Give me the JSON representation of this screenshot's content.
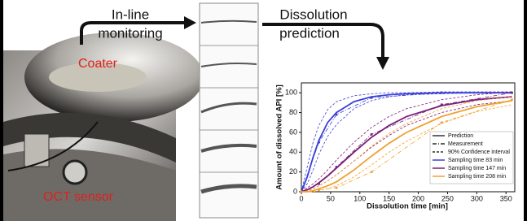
{
  "header": {
    "step1": [
      "In-line",
      "monitoring"
    ],
    "step2": [
      "Dissolution",
      "prediction"
    ]
  },
  "photo": {
    "label_top": "Coater",
    "label_bottom": "OCT sensor"
  },
  "chart_data": {
    "type": "line",
    "xlabel": "Dissolution time [min]",
    "ylabel": "Amount of dissolved API [%]",
    "xlim": [
      0,
      365
    ],
    "ylim": [
      0,
      110
    ],
    "xticks": [
      0,
      50,
      100,
      150,
      200,
      250,
      300,
      350
    ],
    "yticks": [
      0,
      20,
      40,
      60,
      80,
      100
    ],
    "legend_loc": "lower right",
    "styles": [
      {
        "name": "Prediction",
        "dash": "solid",
        "color": "#000000"
      },
      {
        "name": "Measurement",
        "dash": "dashdot",
        "color": "#000000"
      },
      {
        "name": "90% Confidence interval",
        "dash": "dashed",
        "color": "#000000"
      }
    ],
    "x": [
      0,
      10,
      20,
      30,
      45,
      60,
      90,
      120,
      150,
      180,
      240,
      300,
      360
    ],
    "mx": [
      0,
      30,
      60,
      120,
      240,
      360
    ],
    "series": [
      {
        "name": "Sampling time 83 min",
        "color": "#3b3fd6",
        "values": [
          0,
          15,
          35,
          52,
          70,
          80,
          91,
          96,
          98,
          99,
          100,
          100,
          100
        ],
        "ci_low": [
          0,
          8,
          22,
          38,
          56,
          68,
          84,
          92,
          96,
          98,
          99,
          100,
          100
        ],
        "ci_high": [
          0,
          25,
          50,
          67,
          83,
          91,
          97,
          99,
          100,
          100,
          101,
          101,
          101
        ],
        "measured": [
          0,
          50,
          78,
          95,
          100,
          100
        ]
      },
      {
        "name": "Sampling time 147 min",
        "color": "#7a1f7a",
        "values": [
          0,
          2,
          5,
          9,
          16,
          24,
          40,
          55,
          67,
          76,
          87,
          93,
          96
        ],
        "ci_low": [
          0,
          1,
          3,
          6,
          11,
          17,
          31,
          45,
          57,
          67,
          80,
          88,
          92
        ],
        "ci_high": [
          0,
          4,
          8,
          13,
          22,
          32,
          50,
          65,
          76,
          84,
          93,
          98,
          101
        ],
        "measured": [
          0,
          8,
          25,
          58,
          88,
          100
        ]
      },
      {
        "name": "Sampling time 208 min",
        "color": "#f0a030",
        "values": [
          0,
          0,
          1,
          3,
          6,
          10,
          22,
          36,
          49,
          60,
          76,
          86,
          92
        ],
        "ci_low": [
          0,
          0,
          0,
          1,
          3,
          6,
          15,
          27,
          40,
          51,
          69,
          81,
          88
        ],
        "ci_high": [
          0,
          1,
          3,
          6,
          11,
          17,
          31,
          46,
          59,
          69,
          84,
          92,
          96
        ],
        "measured": [
          0,
          2,
          4,
          20,
          70,
          93
        ]
      }
    ]
  }
}
